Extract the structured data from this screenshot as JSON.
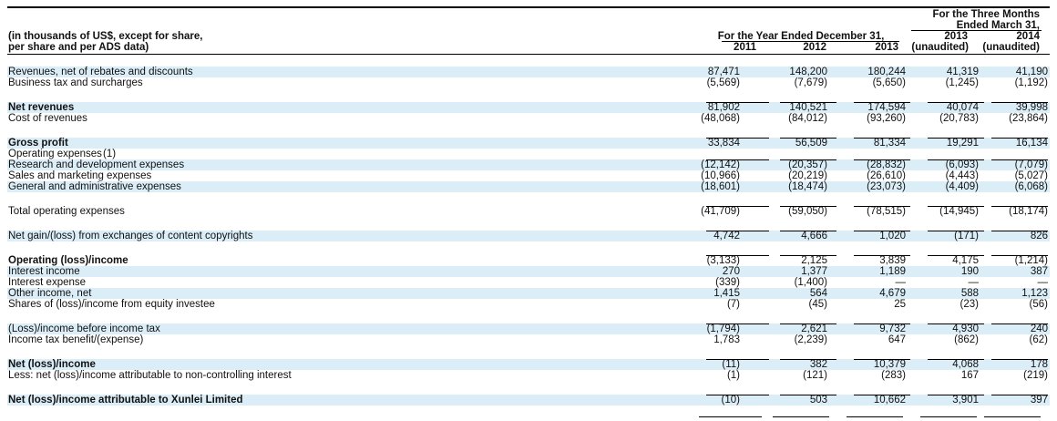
{
  "header": {
    "units_line1": "(in thousands of US$, except for share,",
    "units_line2": "per share and per ADS data)",
    "year_group": "For the Year Ended December 31,",
    "quarter_group_line1": "For the Three Months",
    "quarter_group_line2": "Ended March 31,",
    "columns": [
      "2011",
      "2012",
      "2013",
      "2013",
      "2014"
    ],
    "column_notes": [
      "",
      "",
      "",
      "(unaudited)",
      "(unaudited)"
    ]
  },
  "rows": [
    {
      "label": "Revenues, net of rebates and discounts",
      "values": [
        "87,471",
        "148,200",
        "180,244",
        "41,319",
        "41,190"
      ],
      "bold": false,
      "shaded": true
    },
    {
      "label": "Business tax and surcharges",
      "values": [
        "(5,569)",
        "(7,679)",
        "(5,650)",
        "(1,245)",
        "(1,192)"
      ],
      "bold": false,
      "shaded": false
    },
    {
      "label": "Net revenues",
      "values": [
        "81,902",
        "140,521",
        "174,594",
        "40,074",
        "39,998"
      ],
      "bold": true,
      "shaded": true
    },
    {
      "label": "Cost of revenues",
      "values": [
        "(48,068)",
        "(84,012)",
        "(93,260)",
        "(20,783)",
        "(23,864)"
      ],
      "bold": false,
      "shaded": false
    },
    {
      "label": "Gross profit",
      "values": [
        "33,834",
        "56,509",
        "81,334",
        "19,291",
        "16,134"
      ],
      "bold": true,
      "shaded": true
    },
    {
      "label": "Operating expenses",
      "note": "(1)",
      "values": [
        "",
        "",
        "",
        "",
        ""
      ],
      "bold": false,
      "shaded": false
    },
    {
      "label": "Research and development expenses",
      "values": [
        "(12,142)",
        "(20,357)",
        "(28,832)",
        "(6,093)",
        "(7,079)"
      ],
      "bold": false,
      "shaded": true
    },
    {
      "label": "Sales and marketing expenses",
      "values": [
        "(10,966)",
        "(20,219)",
        "(26,610)",
        "(4,443)",
        "(5,027)"
      ],
      "bold": false,
      "shaded": false
    },
    {
      "label": "General and administrative expenses",
      "values": [
        "(18,601)",
        "(18,474)",
        "(23,073)",
        "(4,409)",
        "(6,068)"
      ],
      "bold": false,
      "shaded": true
    },
    {
      "label": "Total operating expenses",
      "values": [
        "(41,709)",
        "(59,050)",
        "(78,515)",
        "(14,945)",
        "(18,174)"
      ],
      "bold": false,
      "shaded": false
    },
    {
      "label": "Net gain/(loss) from exchanges of content copyrights",
      "values": [
        "4,742",
        "4,666",
        "1,020",
        "(171)",
        "826"
      ],
      "bold": false,
      "shaded": true
    },
    {
      "label": "Operating (loss)/income",
      "values": [
        "(3,133)",
        "2,125",
        "3,839",
        "4,175",
        "(1,214)"
      ],
      "bold": true,
      "shaded": false
    },
    {
      "label": "Interest income",
      "values": [
        "270",
        "1,377",
        "1,189",
        "190",
        "387"
      ],
      "bold": false,
      "shaded": true
    },
    {
      "label": "Interest expense",
      "values": [
        "(339)",
        "(1,400)",
        "—",
        "—",
        "—"
      ],
      "bold": false,
      "shaded": false
    },
    {
      "label": "Other income, net",
      "values": [
        "1,415",
        "564",
        "4,679",
        "588",
        "1,123"
      ],
      "bold": false,
      "shaded": true
    },
    {
      "label": "Shares of (loss)/income from equity investee",
      "values": [
        "(7)",
        "(45)",
        "25",
        "(23)",
        "(56)"
      ],
      "bold": false,
      "shaded": false
    },
    {
      "label": "(Loss)/income before income tax",
      "values": [
        "(1,794)",
        "2,621",
        "9,732",
        "4,930",
        "240"
      ],
      "bold": false,
      "shaded": true
    },
    {
      "label": "Income tax benefit/(expense)",
      "values": [
        "1,783",
        "(2,239)",
        "647",
        "(862)",
        "(62)"
      ],
      "bold": false,
      "shaded": false
    },
    {
      "label": "Net (loss)/income",
      "values": [
        "(11)",
        "382",
        "10,379",
        "4,068",
        "178"
      ],
      "bold": true,
      "shaded": true
    },
    {
      "label": "Less: net (loss)/income attributable to non-controlling interest",
      "values": [
        "(1)",
        "(121)",
        "(283)",
        "167",
        "(219)"
      ],
      "bold": false,
      "shaded": false
    },
    {
      "label": "Net (loss)/income attributable to Xunlei Limited",
      "values": [
        "(10)",
        "503",
        "10,662",
        "3,901",
        "397"
      ],
      "bold": true,
      "shaded": true
    }
  ]
}
